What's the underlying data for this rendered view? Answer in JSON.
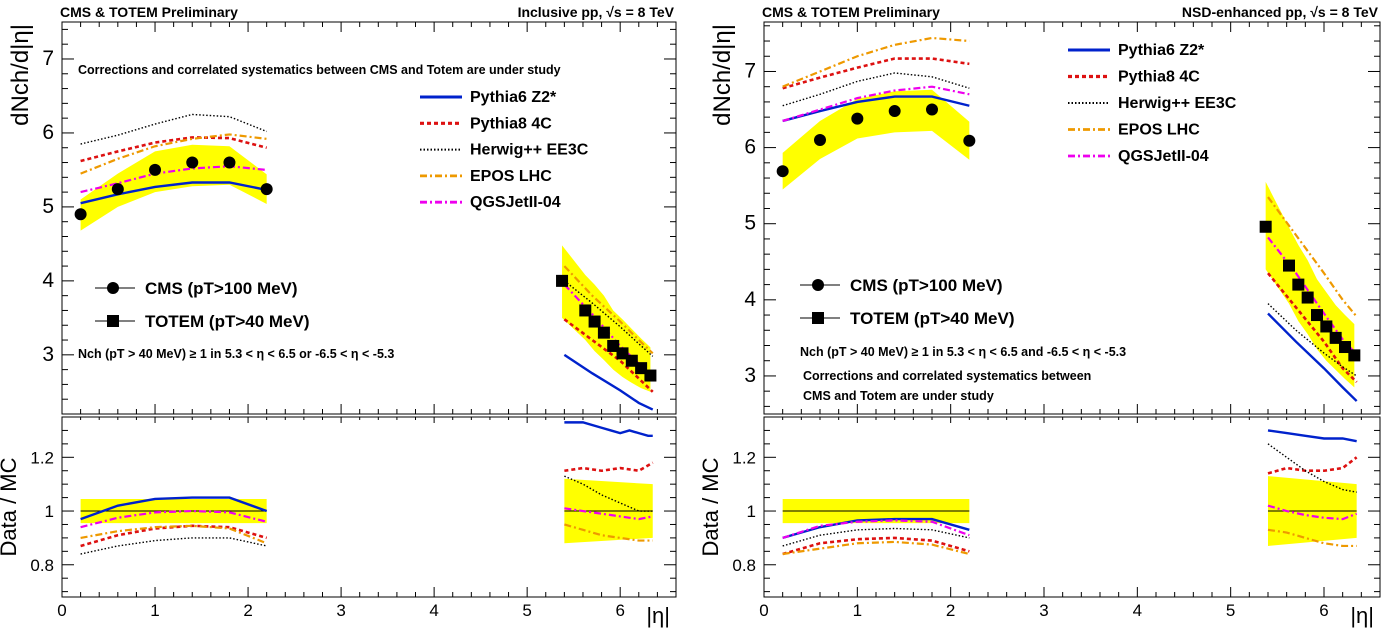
{
  "chart_data": [
    {
      "type": "line",
      "header_left": "CMS & TOTEM Preliminary",
      "header_right": "Inclusive pp, √s = 8 TeV",
      "ylabel": "dNch/d|η|",
      "ratio_ylabel": "Data / MC",
      "xlabel": "|η|",
      "xlim": [
        0,
        6.6
      ],
      "ylim": [
        2.2,
        7.5
      ],
      "ratio_ylim": [
        0.68,
        1.35
      ],
      "x_ticks": [
        "0",
        "1",
        "2",
        "3",
        "4",
        "5",
        "6"
      ],
      "y_ticks": [
        "3",
        "4",
        "5",
        "6",
        "7"
      ],
      "ratio_y_ticks": [
        "0.8",
        "1",
        "1.2"
      ],
      "note_top": "Corrections and correlated systematics between CMS and Totem are under study",
      "note_bottom": "Nch (pT > 40 MeV) ≥ 1 in 5.3 < η < 6.5 or -6.5 < η < -5.3",
      "data_legend": [
        {
          "marker": "circle",
          "label": "CMS (pT>100 MeV)"
        },
        {
          "marker": "square",
          "label": "TOTEM (pT>40 MeV)"
        }
      ],
      "cms": {
        "x": [
          0.2,
          0.6,
          1.0,
          1.4,
          1.8,
          2.2
        ],
        "y": [
          4.9,
          5.24,
          5.5,
          5.6,
          5.6,
          5.24
        ],
        "band_lo": [
          4.68,
          5.0,
          5.2,
          5.28,
          5.3,
          5.04
        ],
        "band_hi": [
          5.1,
          5.45,
          5.75,
          5.84,
          5.82,
          5.44
        ]
      },
      "totem": {
        "x": [
          5.375,
          5.625,
          5.725,
          5.825,
          5.925,
          6.025,
          6.125,
          6.225,
          6.325
        ],
        "y": [
          4.0,
          3.6,
          3.45,
          3.3,
          3.12,
          3.02,
          2.92,
          2.82,
          2.72
        ],
        "band_lo": [
          3.5,
          3.2,
          3.05,
          2.93,
          2.8,
          2.7,
          2.62,
          2.55,
          2.5
        ],
        "band_hi": [
          4.48,
          4.08,
          3.95,
          3.8,
          3.6,
          3.48,
          3.35,
          3.22,
          3.1
        ]
      },
      "series": [
        {
          "name": "Pythia6 Z2*",
          "color": "#0022cc",
          "style": "solid",
          "x": [
            0.2,
            0.6,
            1.0,
            1.4,
            1.8,
            2.2
          ],
          "y": [
            5.05,
            5.17,
            5.27,
            5.33,
            5.33,
            5.23
          ],
          "x2": [
            5.4,
            5.7,
            6.0,
            6.2,
            6.35
          ],
          "y2": [
            3.0,
            2.75,
            2.52,
            2.35,
            2.26
          ],
          "ratio": {
            "x": [
              0.2,
              0.6,
              1.0,
              1.4,
              1.8,
              2.2
            ],
            "y": [
              0.97,
              1.02,
              1.045,
              1.05,
              1.05,
              1.0
            ],
            "x2": [
              5.4,
              5.6,
              5.8,
              5.9,
              6.0,
              6.1,
              6.2,
              6.3,
              6.35
            ],
            "y2": [
              1.33,
              1.33,
              1.31,
              1.3,
              1.29,
              1.3,
              1.29,
              1.28,
              1.28
            ]
          }
        },
        {
          "name": "Pythia8 4C",
          "color": "#dd1111",
          "style": "dotted",
          "x": [
            0.2,
            0.6,
            1.0,
            1.4,
            1.8,
            2.2
          ],
          "y": [
            5.62,
            5.75,
            5.87,
            5.94,
            5.93,
            5.8
          ],
          "x2": [
            5.4,
            5.7,
            6.0,
            6.2,
            6.35
          ],
          "y2": [
            3.48,
            3.2,
            2.92,
            2.68,
            2.5
          ],
          "ratio": {
            "x": [
              0.2,
              0.6,
              1.0,
              1.4,
              1.8,
              2.2
            ],
            "y": [
              0.87,
              0.91,
              0.935,
              0.945,
              0.94,
              0.9
            ],
            "x2": [
              5.4,
              5.6,
              5.8,
              6.0,
              6.2,
              6.35
            ],
            "y2": [
              1.15,
              1.16,
              1.15,
              1.16,
              1.15,
              1.18
            ]
          }
        },
        {
          "name": "Herwig++ EE3C",
          "color": "#000000",
          "style": "dotted-fine",
          "x": [
            0.2,
            0.6,
            1.0,
            1.4,
            1.8,
            2.2
          ],
          "y": [
            5.85,
            5.97,
            6.12,
            6.25,
            6.22,
            6.02
          ],
          "x2": [
            5.4,
            5.7,
            6.0,
            6.2,
            6.35
          ],
          "y2": [
            4.0,
            3.7,
            3.38,
            3.15,
            2.98
          ],
          "ratio": {
            "x": [
              0.2,
              0.6,
              1.0,
              1.4,
              1.8,
              2.2
            ],
            "y": [
              0.84,
              0.87,
              0.89,
              0.9,
              0.9,
              0.87
            ],
            "x2": [
              5.4,
              5.6,
              5.8,
              6.0,
              6.2,
              6.35
            ],
            "y2": [
              1.13,
              1.1,
              1.06,
              1.03,
              1.0,
              1.0
            ]
          }
        },
        {
          "name": "EPOS LHC",
          "color": "#ee9900",
          "style": "dashdot",
          "x": [
            0.2,
            0.6,
            1.0,
            1.4,
            1.8,
            2.2
          ],
          "y": [
            5.45,
            5.65,
            5.82,
            5.92,
            5.98,
            5.92
          ],
          "x2": [
            5.4,
            5.7,
            6.0,
            6.2,
            6.35
          ],
          "y2": [
            4.2,
            3.8,
            3.45,
            3.2,
            3.02
          ],
          "ratio": {
            "x": [
              0.2,
              0.6,
              1.0,
              1.4,
              1.8,
              2.2
            ],
            "y": [
              0.9,
              0.925,
              0.94,
              0.945,
              0.935,
              0.88
            ],
            "x2": [
              5.4,
              5.6,
              5.8,
              6.0,
              6.2,
              6.35
            ],
            "y2": [
              0.95,
              0.93,
              0.91,
              0.9,
              0.89,
              0.89
            ]
          }
        },
        {
          "name": "QGSJetII-04",
          "color": "#ee00ee",
          "style": "dashdot",
          "x": [
            0.2,
            0.6,
            1.0,
            1.4,
            1.8,
            2.2
          ],
          "y": [
            5.2,
            5.32,
            5.45,
            5.52,
            5.55,
            5.5
          ],
          "x2": [
            5.4,
            5.7,
            6.0,
            6.2,
            6.35
          ],
          "y2": [
            3.95,
            3.55,
            3.12,
            2.88,
            2.72
          ],
          "ratio": {
            "x": [
              0.2,
              0.6,
              1.0,
              1.4,
              1.8,
              2.2
            ],
            "y": [
              0.94,
              0.975,
              0.995,
              1.0,
              0.995,
              0.96
            ],
            "x2": [
              5.4,
              5.6,
              5.8,
              6.0,
              6.2,
              6.35
            ],
            "y2": [
              1.01,
              1.0,
              0.99,
              0.98,
              0.97,
              0.98
            ]
          }
        }
      ],
      "ratio_band": {
        "x": [
          0.2,
          2.2
        ],
        "lo": [
          0.955,
          0.955
        ],
        "hi": [
          1.045,
          1.045
        ],
        "x2": [
          5.4,
          6.35
        ],
        "lo2": [
          0.88,
          0.9
        ],
        "hi2": [
          1.12,
          1.1
        ]
      }
    },
    {
      "type": "line",
      "header_left": "CMS & TOTEM Preliminary",
      "header_right": "NSD-enhanced pp, √s = 8 TeV",
      "ylabel": "dNch/d|η|",
      "ratio_ylabel": "Data / MC",
      "xlabel": "|η|",
      "xlim": [
        0,
        6.6
      ],
      "ylim": [
        2.5,
        7.65
      ],
      "ratio_ylim": [
        0.68,
        1.35
      ],
      "x_ticks": [
        "0",
        "1",
        "2",
        "3",
        "4",
        "5",
        "6"
      ],
      "y_ticks": [
        "3",
        "4",
        "5",
        "6",
        "7"
      ],
      "ratio_y_ticks": [
        "0.8",
        "1",
        "1.2"
      ],
      "note_top": "",
      "note_bottom": "Nch (pT > 40 MeV) ≥ 1 in 5.3 < η < 6.5 and -6.5 < η < -5.3",
      "note_extra_1": "Corrections and correlated systematics between",
      "note_extra_2": "CMS and Totem are under study",
      "data_legend": [
        {
          "marker": "circle",
          "label": "CMS (pT>100 MeV)"
        },
        {
          "marker": "square",
          "label": "TOTEM (pT>40 MeV)"
        }
      ],
      "cms": {
        "x": [
          0.2,
          0.6,
          1.0,
          1.4,
          1.8,
          2.2
        ],
        "y": [
          5.69,
          6.1,
          6.38,
          6.48,
          6.5,
          6.09
        ],
        "band_lo": [
          5.45,
          5.85,
          6.12,
          6.2,
          6.22,
          5.84
        ],
        "band_hi": [
          5.93,
          6.35,
          6.64,
          6.74,
          6.76,
          6.34
        ]
      },
      "totem": {
        "x": [
          5.375,
          5.625,
          5.725,
          5.825,
          5.925,
          6.025,
          6.125,
          6.225,
          6.325
        ],
        "y": [
          4.96,
          4.45,
          4.2,
          4.03,
          3.8,
          3.65,
          3.5,
          3.38,
          3.27
        ],
        "band_lo": [
          4.4,
          3.95,
          3.72,
          3.55,
          3.35,
          3.2,
          3.08,
          2.96,
          2.85
        ],
        "band_hi": [
          5.55,
          4.95,
          4.72,
          4.52,
          4.27,
          4.1,
          3.93,
          3.8,
          3.68
        ]
      },
      "series": [
        {
          "name": "Pythia6 Z2*",
          "color": "#0022cc",
          "style": "solid",
          "x": [
            0.2,
            0.6,
            1.0,
            1.4,
            1.8,
            2.2
          ],
          "y": [
            6.35,
            6.48,
            6.6,
            6.67,
            6.67,
            6.55
          ],
          "x2": [
            5.4,
            5.7,
            6.0,
            6.2,
            6.35
          ],
          "y2": [
            3.82,
            3.45,
            3.1,
            2.85,
            2.67
          ],
          "ratio": {
            "x": [
              0.2,
              0.6,
              1.0,
              1.4,
              1.8,
              2.2
            ],
            "y": [
              0.9,
              0.94,
              0.965,
              0.97,
              0.97,
              0.93
            ],
            "x2": [
              5.4,
              5.6,
              5.8,
              6.0,
              6.2,
              6.35
            ],
            "y2": [
              1.3,
              1.29,
              1.28,
              1.27,
              1.27,
              1.26
            ]
          }
        },
        {
          "name": "Pythia8 4C",
          "color": "#dd1111",
          "style": "dotted",
          "x": [
            0.2,
            0.6,
            1.0,
            1.4,
            1.8,
            2.2
          ],
          "y": [
            6.78,
            6.92,
            7.05,
            7.17,
            7.17,
            7.1
          ],
          "x2": [
            5.4,
            5.7,
            6.0,
            6.2,
            6.35
          ],
          "y2": [
            4.35,
            3.9,
            3.45,
            3.1,
            2.92
          ],
          "ratio": {
            "x": [
              0.2,
              0.6,
              1.0,
              1.4,
              1.8,
              2.2
            ],
            "y": [
              0.84,
              0.88,
              0.895,
              0.9,
              0.89,
              0.85
            ],
            "x2": [
              5.4,
              5.6,
              5.8,
              6.0,
              6.2,
              6.35
            ],
            "y2": [
              1.14,
              1.16,
              1.15,
              1.15,
              1.16,
              1.2
            ]
          }
        },
        {
          "name": "Herwig++ EE3C",
          "color": "#000000",
          "style": "dotted-fine",
          "x": [
            0.2,
            0.6,
            1.0,
            1.4,
            1.8,
            2.2
          ],
          "y": [
            6.55,
            6.7,
            6.87,
            6.98,
            6.93,
            6.78
          ],
          "x2": [
            5.4,
            5.7,
            6.0,
            6.2,
            6.35
          ],
          "y2": [
            3.95,
            3.6,
            3.3,
            3.12,
            3.0
          ],
          "ratio": {
            "x": [
              0.2,
              0.6,
              1.0,
              1.4,
              1.8,
              2.2
            ],
            "y": [
              0.87,
              0.91,
              0.93,
              0.935,
              0.93,
              0.9
            ],
            "x2": [
              5.4,
              5.6,
              5.8,
              6.0,
              6.2,
              6.35
            ],
            "y2": [
              1.25,
              1.2,
              1.15,
              1.11,
              1.08,
              1.07
            ]
          }
        },
        {
          "name": "EPOS LHC",
          "color": "#ee9900",
          "style": "dashdot",
          "x": [
            0.2,
            0.6,
            1.0,
            1.4,
            1.8,
            2.2
          ],
          "y": [
            6.8,
            7.0,
            7.2,
            7.35,
            7.44,
            7.4
          ],
          "x2": [
            5.4,
            5.7,
            6.0,
            6.2,
            6.35
          ],
          "y2": [
            5.35,
            4.85,
            4.35,
            4.0,
            3.78
          ],
          "ratio": {
            "x": [
              0.2,
              0.6,
              1.0,
              1.4,
              1.8,
              2.2
            ],
            "y": [
              0.84,
              0.86,
              0.88,
              0.885,
              0.875,
              0.84
            ],
            "x2": [
              5.4,
              5.6,
              5.8,
              6.0,
              6.2,
              6.35
            ],
            "y2": [
              0.93,
              0.92,
              0.9,
              0.88,
              0.87,
              0.87
            ]
          }
        },
        {
          "name": "QGSJetII-04",
          "color": "#ee00ee",
          "style": "dashdot",
          "x": [
            0.2,
            0.6,
            1.0,
            1.4,
            1.8,
            2.2
          ],
          "y": [
            6.35,
            6.5,
            6.65,
            6.75,
            6.8,
            6.7
          ],
          "x2": [
            5.4,
            5.7,
            6.0,
            6.2,
            6.35
          ],
          "y2": [
            4.82,
            4.35,
            3.82,
            3.48,
            3.28
          ],
          "ratio": {
            "x": [
              0.2,
              0.6,
              1.0,
              1.4,
              1.8,
              2.2
            ],
            "y": [
              0.9,
              0.945,
              0.96,
              0.965,
              0.96,
              0.91
            ],
            "x2": [
              5.4,
              5.6,
              5.8,
              6.0,
              6.2,
              6.35
            ],
            "y2": [
              1.02,
              1.0,
              0.985,
              0.975,
              0.97,
              0.99
            ]
          }
        }
      ],
      "ratio_band": {
        "x": [
          0.2,
          2.2
        ],
        "lo": [
          0.955,
          0.955
        ],
        "hi": [
          1.045,
          1.045
        ],
        "x2": [
          5.4,
          6.35
        ],
        "lo2": [
          0.87,
          0.9
        ],
        "hi2": [
          1.13,
          1.1
        ]
      }
    }
  ]
}
